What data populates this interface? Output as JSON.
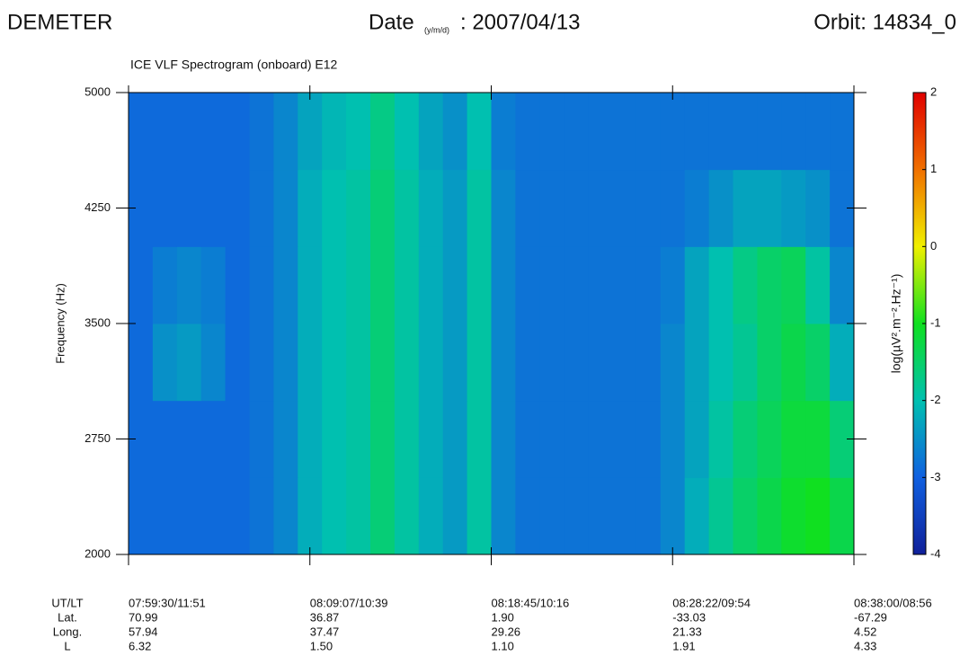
{
  "header": {
    "mission": "DEMETER",
    "date_label": "Date",
    "date_format": "(y/m/d)",
    "date_value": ": 2007/04/13",
    "orbit": "Orbit: 14834_0"
  },
  "chart_data": {
    "type": "spectrogram",
    "title": "ICE VLF Spectrogram (onboard) E12",
    "y_label": "Frequency (Hz)",
    "ylim": [
      2000,
      5000
    ],
    "yticks": [
      2000,
      2750,
      3500,
      4250,
      5000
    ],
    "freq_bins": [
      2000,
      2500,
      3000,
      3500,
      4000,
      4500,
      5000
    ],
    "values": [
      [
        -2.9,
        -2.9,
        -2.9,
        -2.9,
        -2.9,
        -2.8,
        -2.6,
        -2.2,
        -2.0,
        -1.9,
        -1.6,
        -1.9,
        -2.2,
        -2.4,
        -1.9,
        -2.6,
        -2.8,
        -2.8,
        -2.8,
        -2.8,
        -2.8,
        -2.8,
        -2.6,
        -2.2,
        -1.8,
        -1.5,
        -1.3,
        -1.1,
        -1.0,
        -1.3
      ],
      [
        -2.9,
        -2.9,
        -2.9,
        -2.9,
        -2.9,
        -2.8,
        -2.6,
        -2.2,
        -2.0,
        -1.9,
        -1.6,
        -1.9,
        -2.2,
        -2.4,
        -1.9,
        -2.6,
        -2.8,
        -2.8,
        -2.8,
        -2.8,
        -2.8,
        -2.8,
        -2.6,
        -2.3,
        -1.9,
        -1.6,
        -1.4,
        -1.2,
        -1.2,
        -1.6
      ],
      [
        -2.9,
        -2.5,
        -2.4,
        -2.6,
        -2.9,
        -2.8,
        -2.6,
        -2.2,
        -2.0,
        -1.9,
        -1.6,
        -1.9,
        -2.2,
        -2.4,
        -1.9,
        -2.6,
        -2.8,
        -2.8,
        -2.8,
        -2.8,
        -2.8,
        -2.8,
        -2.6,
        -2.3,
        -2.0,
        -1.8,
        -1.5,
        -1.3,
        -1.5,
        -2.2
      ],
      [
        -2.9,
        -2.7,
        -2.6,
        -2.7,
        -2.9,
        -2.8,
        -2.6,
        -2.2,
        -2.0,
        -1.9,
        -1.6,
        -1.9,
        -2.2,
        -2.4,
        -1.9,
        -2.6,
        -2.8,
        -2.8,
        -2.8,
        -2.8,
        -2.8,
        -2.8,
        -2.7,
        -2.3,
        -2.0,
        -1.7,
        -1.5,
        -1.4,
        -1.9,
        -2.6
      ],
      [
        -2.9,
        -2.9,
        -2.9,
        -2.9,
        -2.9,
        -2.8,
        -2.6,
        -2.2,
        -2.0,
        -1.9,
        -1.6,
        -1.9,
        -2.2,
        -2.4,
        -1.9,
        -2.6,
        -2.8,
        -2.8,
        -2.8,
        -2.8,
        -2.8,
        -2.8,
        -2.8,
        -2.7,
        -2.5,
        -2.3,
        -2.3,
        -2.4,
        -2.5,
        -2.8
      ],
      [
        -2.9,
        -2.9,
        -2.9,
        -2.9,
        -2.9,
        -2.8,
        -2.6,
        -2.3,
        -2.1,
        -2.0,
        -1.7,
        -2.0,
        -2.3,
        -2.5,
        -2.0,
        -2.7,
        -2.8,
        -2.8,
        -2.8,
        -2.8,
        -2.8,
        -2.8,
        -2.8,
        -2.8,
        -2.8,
        -2.8,
        -2.8,
        -2.8,
        -2.8,
        -2.8
      ]
    ],
    "clim": [
      -4,
      2
    ],
    "cticks": [
      -4,
      -3,
      -2,
      -1,
      0,
      1,
      2
    ],
    "colorbar_label": "log(µV².m⁻².Hz⁻¹)",
    "colormap": [
      "#10209a",
      "#1060e0",
      "#00c0b0",
      "#10e020",
      "#f0f000",
      "#f07000",
      "#e00000"
    ],
    "x": [
      "07:59:30/11:51",
      "08:09:07/10:39",
      "08:18:45/10:16",
      "08:28:22/09:54",
      "08:38:00/08:56"
    ],
    "orbit_rows": [
      "UT/LT",
      "Lat.",
      "Long.",
      "L"
    ],
    "orbit_table": [
      [
        "70.99",
        "57.94",
        "6.32"
      ],
      [
        "36.87",
        "37.47",
        "1.50"
      ],
      [
        "1.90",
        "29.26",
        "1.10"
      ],
      [
        "-33.03",
        "21.33",
        "1.91"
      ],
      [
        "-67.29",
        "4.52",
        "4.33"
      ]
    ]
  }
}
